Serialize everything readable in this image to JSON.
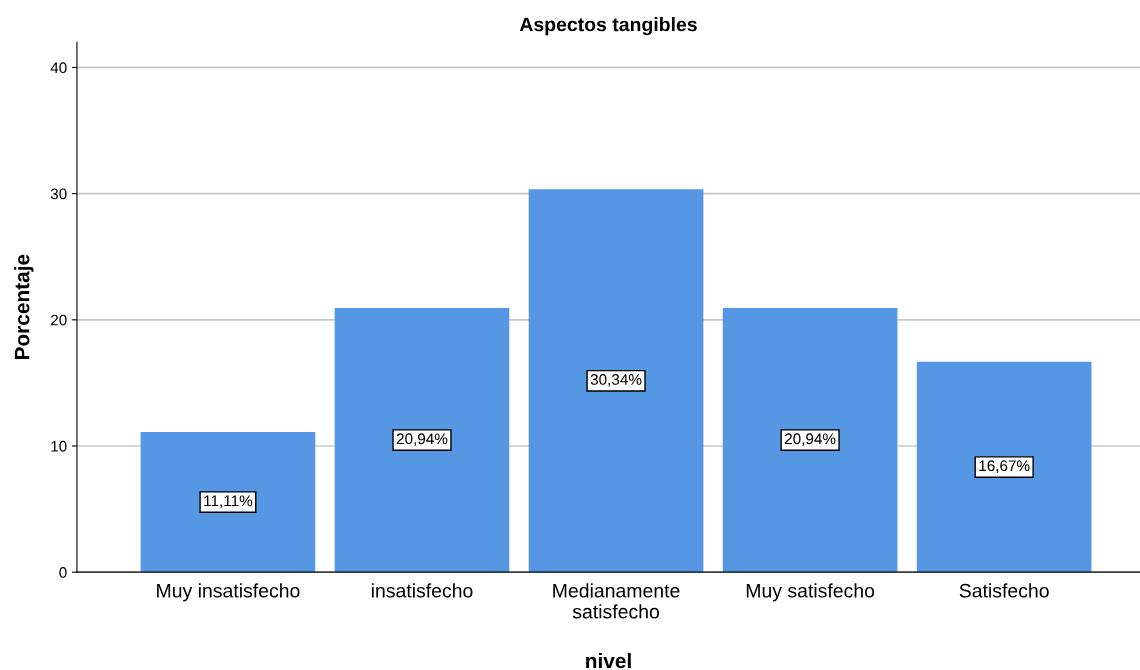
{
  "chart_data": {
    "type": "bar",
    "title": "Aspectos tangibles",
    "xlabel": "nivel",
    "ylabel": "Porcentaje",
    "categories": [
      "Muy insatisfecho",
      "insatisfecho",
      "Medianamente\nsatisfecho",
      "Muy satisfecho",
      "Satisfecho"
    ],
    "values": [
      11.11,
      20.94,
      30.34,
      20.94,
      16.67
    ],
    "value_labels": [
      "11,11%",
      "20,94%",
      "30,34%",
      "20,94%",
      "16,67%"
    ],
    "color": "#5597e3",
    "ylim": [
      0,
      42
    ],
    "yticks": [
      0,
      10,
      20,
      30,
      40
    ],
    "grid": "y"
  }
}
